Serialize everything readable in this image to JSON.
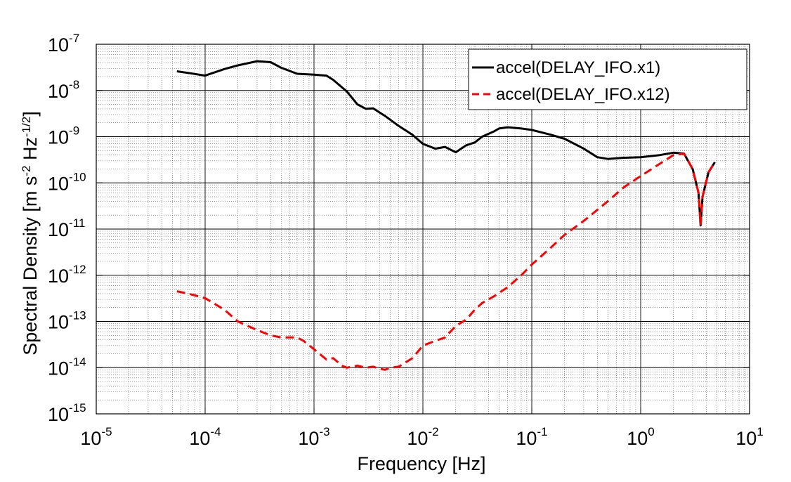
{
  "chart_data": {
    "type": "line",
    "xlabel": "Frequency  [Hz]",
    "ylabel": {
      "prefix": "Spectral Density  [m s",
      "exp1": "-2",
      "middle": " Hz",
      "exp2": "-1/2",
      "suffix": "]"
    },
    "x_scale": "log",
    "y_scale": "log",
    "xlim": [
      1e-05,
      10
    ],
    "ylim": [
      1e-15,
      1e-07
    ],
    "x_ticks": [
      {
        "base": "10",
        "exp": "-5"
      },
      {
        "base": "10",
        "exp": "-4"
      },
      {
        "base": "10",
        "exp": "-3"
      },
      {
        "base": "10",
        "exp": "-2"
      },
      {
        "base": "10",
        "exp": "-1"
      },
      {
        "base": "10",
        "exp": "0"
      },
      {
        "base": "10",
        "exp": "1"
      }
    ],
    "y_ticks": [
      {
        "base": "10",
        "exp": "-7"
      },
      {
        "base": "10",
        "exp": "-8"
      },
      {
        "base": "10",
        "exp": "-9"
      },
      {
        "base": "10",
        "exp": "-10"
      },
      {
        "base": "10",
        "exp": "-11"
      },
      {
        "base": "10",
        "exp": "-12"
      },
      {
        "base": "10",
        "exp": "-13"
      },
      {
        "base": "10",
        "exp": "-14"
      },
      {
        "base": "10",
        "exp": "-15"
      }
    ],
    "grid": true,
    "minor_grid": true,
    "legend_position": "top-right",
    "series": [
      {
        "name": "accel(DELAY_IFO.x1)",
        "color": "#000000",
        "style": "solid",
        "points": [
          [
            5.5e-05,
            2.6e-08
          ],
          [
            7e-05,
            2.4e-08
          ],
          [
            0.0001,
            2.1e-08
          ],
          [
            0.00015,
            2.9e-08
          ],
          [
            0.0002,
            3.5e-08
          ],
          [
            0.0003,
            4.3e-08
          ],
          [
            0.0004,
            4.1e-08
          ],
          [
            0.0005,
            3.1e-08
          ],
          [
            0.0007,
            2.3e-08
          ],
          [
            0.001,
            2.2e-08
          ],
          [
            0.0013,
            2.1e-08
          ],
          [
            0.0015,
            1.7e-08
          ],
          [
            0.002,
            9.5e-09
          ],
          [
            0.0025,
            5e-09
          ],
          [
            0.003,
            4e-09
          ],
          [
            0.0035,
            4.1e-09
          ],
          [
            0.0045,
            2.8e-09
          ],
          [
            0.006,
            1.7e-09
          ],
          [
            0.008,
            1.1e-09
          ],
          [
            0.01,
            7e-10
          ],
          [
            0.013,
            5.5e-10
          ],
          [
            0.016,
            6e-10
          ],
          [
            0.02,
            4.6e-10
          ],
          [
            0.025,
            6.5e-10
          ],
          [
            0.03,
            7.5e-10
          ],
          [
            0.035,
            1e-09
          ],
          [
            0.045,
            1.3e-09
          ],
          [
            0.05,
            1.5e-09
          ],
          [
            0.06,
            1.6e-09
          ],
          [
            0.08,
            1.5e-09
          ],
          [
            0.1,
            1.4e-09
          ],
          [
            0.15,
            1.1e-09
          ],
          [
            0.2,
            9e-10
          ],
          [
            0.3,
            5.5e-10
          ],
          [
            0.4,
            3.6e-10
          ],
          [
            0.5,
            3.3e-10
          ],
          [
            0.7,
            3.5e-10
          ],
          [
            1,
            3.6e-10
          ],
          [
            1.5,
            4e-10
          ],
          [
            2,
            4.5e-10
          ],
          [
            2.5,
            4.3e-10
          ],
          [
            3,
            2e-10
          ],
          [
            3.4,
            6e-11
          ],
          [
            3.55,
            1.2e-11
          ],
          [
            3.7,
            5e-11
          ],
          [
            4.2,
            1.7e-10
          ],
          [
            4.8,
            2.8e-10
          ]
        ]
      },
      {
        "name": "accel(DELAY_IFO.x12)",
        "color": "#ff0000",
        "style": "dashed",
        "points": [
          [
            5.5e-05,
            4.5e-13
          ],
          [
            7e-05,
            4e-13
          ],
          [
            0.0001,
            3.2e-13
          ],
          [
            0.00015,
            1.8e-13
          ],
          [
            0.0002,
            1e-13
          ],
          [
            0.0003,
            6.5e-14
          ],
          [
            0.0004,
            5e-14
          ],
          [
            0.0005,
            4.5e-14
          ],
          [
            0.0007,
            4.5e-14
          ],
          [
            0.0008,
            3.8e-14
          ],
          [
            0.001,
            2.5e-14
          ],
          [
            0.0013,
            1.5e-14
          ],
          [
            0.0015,
            1.6e-14
          ],
          [
            0.0018,
            1.1e-14
          ],
          [
            0.002,
            1e-14
          ],
          [
            0.0025,
            1.1e-14
          ],
          [
            0.003,
            1e-14
          ],
          [
            0.0035,
            1.05e-14
          ],
          [
            0.004,
            9.5e-15
          ],
          [
            0.0045,
            9e-15
          ],
          [
            0.005,
            1e-14
          ],
          [
            0.006,
            1.05e-14
          ],
          [
            0.008,
            1.6e-14
          ],
          [
            0.01,
            3e-14
          ],
          [
            0.013,
            3.8e-14
          ],
          [
            0.016,
            4.5e-14
          ],
          [
            0.02,
            8e-14
          ],
          [
            0.025,
            1.1e-13
          ],
          [
            0.03,
            1.8e-13
          ],
          [
            0.035,
            2.5e-13
          ],
          [
            0.045,
            3.5e-13
          ],
          [
            0.06,
            5.5e-13
          ],
          [
            0.08,
            1e-12
          ],
          [
            0.1,
            1.7e-12
          ],
          [
            0.15,
            4e-12
          ],
          [
            0.2,
            7.5e-12
          ],
          [
            0.3,
            1.5e-11
          ],
          [
            0.5,
            4e-11
          ],
          [
            0.7,
            8e-11
          ],
          [
            1,
            1.4e-10
          ],
          [
            1.5,
            2.6e-10
          ],
          [
            2,
            4e-10
          ],
          [
            2.5,
            4.3e-10
          ],
          [
            3,
            2e-10
          ],
          [
            3.4,
            6e-11
          ],
          [
            3.55,
            1.2e-11
          ],
          [
            3.7,
            5e-11
          ],
          [
            4.2,
            1.7e-10
          ],
          [
            4.8,
            2.8e-10
          ]
        ]
      }
    ]
  }
}
